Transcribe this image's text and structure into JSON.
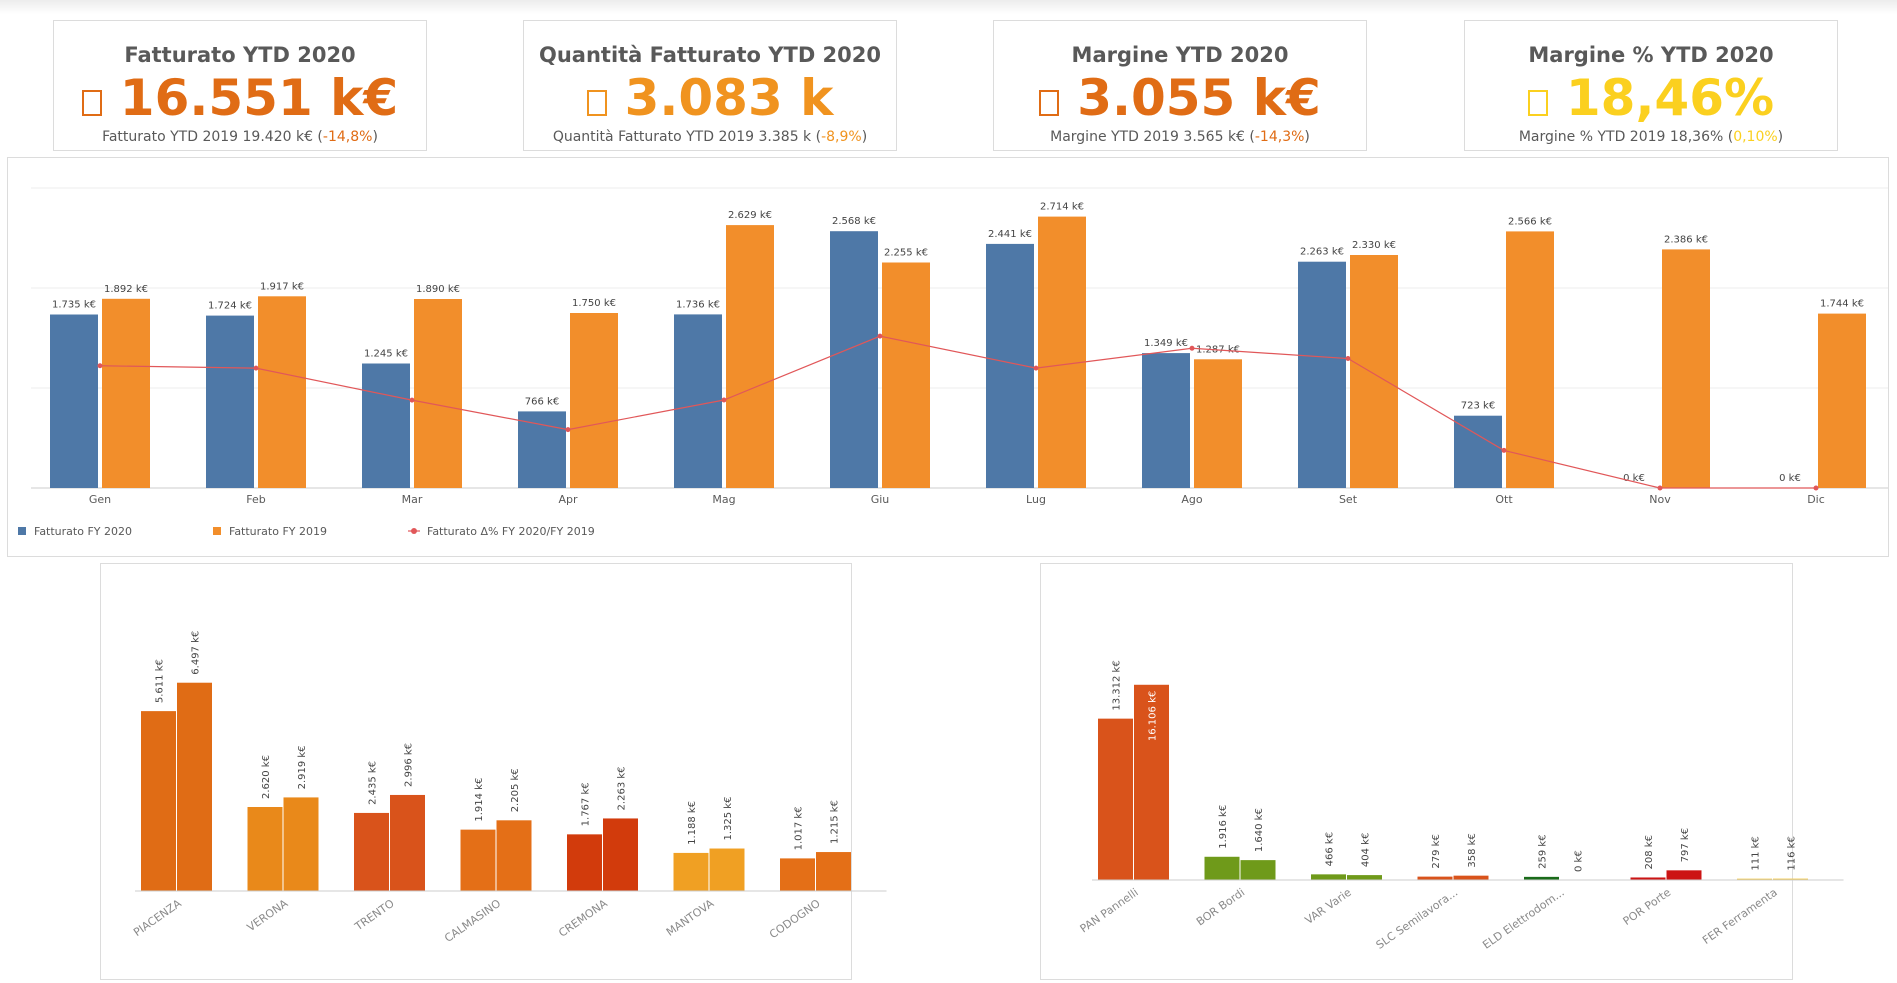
{
  "kpis": [
    {
      "title": "Fatturato YTD 2020",
      "value": "16.551 k€",
      "sub": "Fatturato YTD 2019 19.420 k€ (",
      "delta": "-14,8%",
      "close": ")",
      "color": "#e06c15",
      "delta_color": "#e06c15"
    },
    {
      "title": "Quantità Fatturato YTD 2020",
      "value": "3.083 k",
      "sub": "Quantità Fatturato YTD 2019 3.385 k (",
      "delta": "-8,9%",
      "close": ")",
      "color": "#f0931f",
      "delta_color": "#f0931f"
    },
    {
      "title": "Margine YTD 2020",
      "value": "3.055 k€",
      "sub": "Margine YTD 2019 3.565 k€ (",
      "delta": "-14,3%",
      "close": ")",
      "color": "#e06c15",
      "delta_color": "#e06c15"
    },
    {
      "title": "Margine % YTD 2020",
      "value": "18,46%",
      "sub": "Margine % YTD 2019 18,36% (",
      "delta": "0,10%",
      "close": ")",
      "color": "#fbd01f",
      "delta_color": "#fbd01f"
    }
  ],
  "chart_data": [
    {
      "type": "bar",
      "categories": [
        "Gen",
        "Feb",
        "Mar",
        "Apr",
        "Mag",
        "Giu",
        "Lug",
        "Ago",
        "Set",
        "Ott",
        "Nov",
        "Dic"
      ],
      "series": [
        {
          "name": "Fatturato FY 2020",
          "color": "#4e78a7",
          "values": [
            1735,
            1724,
            1245,
            766,
            1736,
            2568,
            2441,
            1349,
            2263,
            723,
            0,
            0
          ],
          "labels": [
            "1.735 k€",
            "1.724 k€",
            "1.245 k€",
            "766 k€",
            "1.736 k€",
            "2.568 k€",
            "2.441 k€",
            "1.349 k€",
            "2.263 k€",
            "723 k€",
            "0 k€",
            "0 k€"
          ]
        },
        {
          "name": "Fatturato FY 2019",
          "color": "#f28e2b",
          "values": [
            1892,
            1917,
            1890,
            1750,
            2629,
            2255,
            2714,
            1287,
            2330,
            2566,
            2386,
            1744
          ],
          "labels": [
            "1.892 k€",
            "1.917 k€",
            "1.890 k€",
            "1.750 k€",
            "2.629 k€",
            "2.255 k€",
            "2.714 k€",
            "1.287 k€",
            "2.330 k€",
            "2.566 k€",
            "2.386 k€",
            "1.744 k€"
          ]
        },
        {
          "name": "Fatturato Δ% FY 2020/FY 2019",
          "type": "line",
          "color": "#e15759",
          "values": [
            -8.3,
            -10.1,
            -34.1,
            -56.2,
            -34.0,
            13.9,
            -10.1,
            4.8,
            -2.9,
            -71.8,
            -100,
            -100
          ]
        }
      ],
      "ylim": [
        0,
        3000
      ],
      "grid": true,
      "legend": "bottom-left"
    },
    {
      "type": "bar",
      "categories": [
        "PIACENZA",
        "VERONA",
        "TRENTO",
        "CALMASINO",
        "CREMONA",
        "MANTOVA",
        "CODOGNO"
      ],
      "colors": [
        "#e06c15",
        "#e9891a",
        "#d9531b",
        "#e46f17",
        "#d23b0c",
        "#f0a023",
        "#e46f17"
      ],
      "series": [
        {
          "values": [
            5611,
            2620,
            2435,
            1914,
            1767,
            1188,
            1017
          ],
          "labels": [
            "5.611 k€",
            "2.620 k€",
            "2.435 k€",
            "1.914 k€",
            "1.767 k€",
            "1.188 k€",
            "1.017 k€"
          ]
        },
        {
          "values": [
            6497,
            2919,
            2996,
            2205,
            2263,
            1325,
            1215
          ],
          "labels": [
            "6.497 k€",
            "2.919 k€",
            "2.996 k€",
            "2.205 k€",
            "2.263 k€",
            "1.325 k€",
            "1.215 k€"
          ]
        }
      ],
      "ylim": [
        0,
        6800
      ]
    },
    {
      "type": "bar",
      "categories": [
        "PAN Pannelli",
        "BOR Bordi",
        "VAR Varie",
        "SLC Semilavora...",
        "ELD Elettrodom...",
        "POR Porte",
        "FER Ferramenta"
      ],
      "colors": [
        "#d9531b",
        "#6f9a1a",
        "#6f9a1a",
        "#d9531b",
        "#1a6b1a",
        "#cc1414",
        "#f2c94a"
      ],
      "series": [
        {
          "values": [
            13312,
            1916,
            466,
            279,
            259,
            208,
            111
          ],
          "labels": [
            "13.312 k€",
            "1.916 k€",
            "466 k€",
            "279 k€",
            "259 k€",
            "208 k€",
            "111 k€"
          ]
        },
        {
          "values": [
            16106,
            1640,
            404,
            358,
            0,
            797,
            116
          ],
          "labels": [
            "16.106 k€",
            "1.640 k€",
            "404 k€",
            "358 k€",
            "0 k€",
            "797 k€",
            "116 k€"
          ]
        }
      ],
      "ylim": [
        0,
        16500
      ]
    }
  ]
}
